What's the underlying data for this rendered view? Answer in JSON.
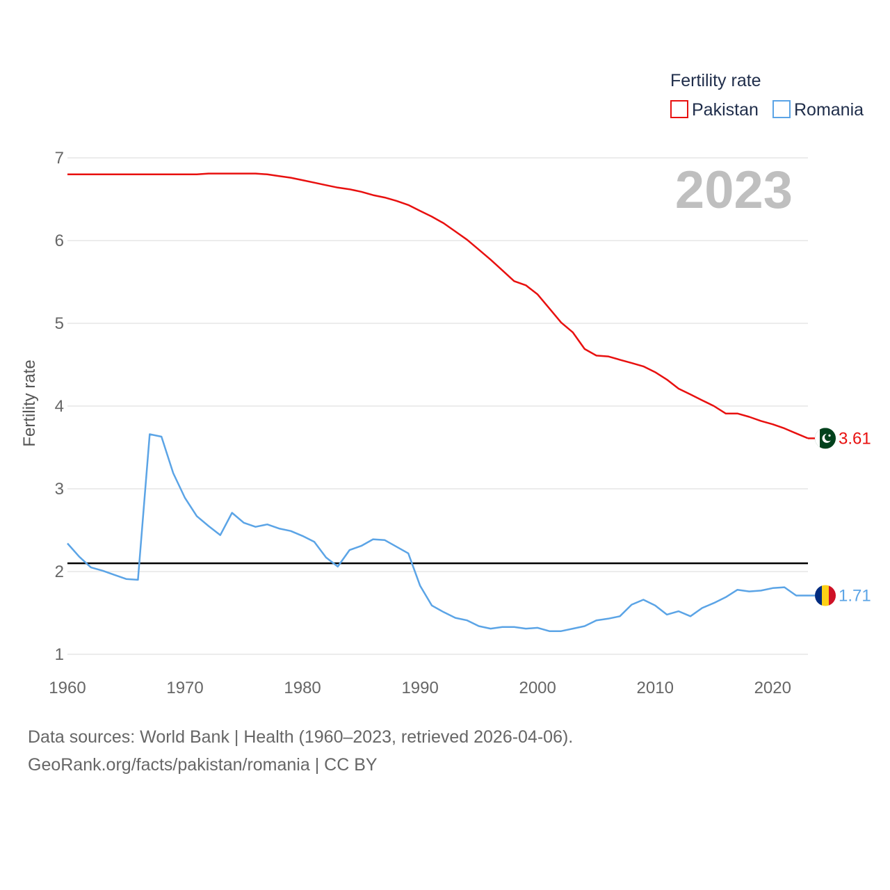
{
  "chart_data": {
    "type": "line",
    "title": "",
    "year_label": "2023",
    "ylabel": "Fertility rate",
    "xlabel": "",
    "xlim": [
      1960,
      2023
    ],
    "ylim": [
      1,
      7
    ],
    "x_ticks": [
      "1960",
      "1970",
      "1980",
      "1990",
      "2000",
      "2010",
      "2020"
    ],
    "y_ticks": [
      "1",
      "2",
      "3",
      "4",
      "5",
      "6",
      "7"
    ],
    "legend_title": "Fertility rate",
    "reference_line": 2.1,
    "x": [
      1960,
      1961,
      1962,
      1963,
      1964,
      1965,
      1966,
      1967,
      1968,
      1969,
      1970,
      1971,
      1972,
      1973,
      1974,
      1975,
      1976,
      1977,
      1978,
      1979,
      1980,
      1981,
      1982,
      1983,
      1984,
      1985,
      1986,
      1987,
      1988,
      1989,
      1990,
      1991,
      1992,
      1993,
      1994,
      1995,
      1996,
      1997,
      1998,
      1999,
      2000,
      2001,
      2002,
      2003,
      2004,
      2005,
      2006,
      2007,
      2008,
      2009,
      2010,
      2011,
      2012,
      2013,
      2014,
      2015,
      2016,
      2017,
      2018,
      2019,
      2020,
      2021,
      2022,
      2023
    ],
    "series": [
      {
        "name": "Pakistan",
        "color": "#e8100f",
        "end_label": "3.61",
        "flag": "pakistan-flag",
        "values": [
          6.8,
          6.8,
          6.8,
          6.8,
          6.8,
          6.8,
          6.8,
          6.8,
          6.8,
          6.8,
          6.8,
          6.8,
          6.81,
          6.81,
          6.81,
          6.81,
          6.81,
          6.8,
          6.78,
          6.76,
          6.73,
          6.7,
          6.67,
          6.64,
          6.62,
          6.59,
          6.55,
          6.52,
          6.48,
          6.43,
          6.36,
          6.29,
          6.21,
          6.11,
          6.01,
          5.89,
          5.77,
          5.64,
          5.51,
          5.46,
          5.35,
          5.18,
          5.01,
          4.89,
          4.69,
          4.61,
          4.6,
          4.56,
          4.52,
          4.48,
          4.41,
          4.32,
          4.21,
          4.14,
          4.07,
          4.0,
          3.91,
          3.91,
          3.87,
          3.82,
          3.78,
          3.73,
          3.67,
          3.61
        ]
      },
      {
        "name": "Romania",
        "color": "#5ba4e6",
        "end_label": "1.71",
        "flag": "romania-flag",
        "values": [
          2.34,
          2.18,
          2.05,
          2.01,
          1.96,
          1.91,
          1.9,
          3.66,
          3.63,
          3.19,
          2.89,
          2.67,
          2.55,
          2.44,
          2.71,
          2.59,
          2.54,
          2.57,
          2.52,
          2.49,
          2.43,
          2.36,
          2.17,
          2.06,
          2.26,
          2.31,
          2.39,
          2.38,
          2.3,
          2.22,
          1.83,
          1.59,
          1.51,
          1.44,
          1.41,
          1.34,
          1.31,
          1.33,
          1.33,
          1.31,
          1.32,
          1.28,
          1.28,
          1.31,
          1.34,
          1.41,
          1.43,
          1.46,
          1.6,
          1.66,
          1.59,
          1.48,
          1.52,
          1.46,
          1.56,
          1.62,
          1.69,
          1.78,
          1.76,
          1.77,
          1.8,
          1.81,
          1.71,
          1.71
        ]
      }
    ]
  },
  "footer": {
    "sources": "Data sources: World Bank | Health (1960–2023, retrieved 2026-04-06).",
    "credit": "GeoRank.org/facts/pakistan/romania | CC BY"
  }
}
